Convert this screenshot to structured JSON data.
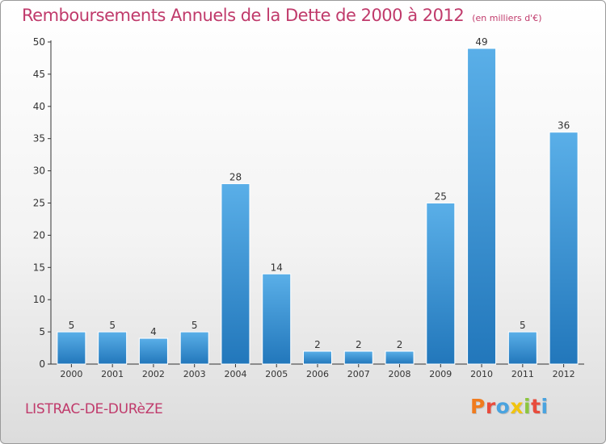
{
  "header": {
    "title": "Remboursements Annuels de la Dette de 2000 à 2012",
    "subtitle": "(en milliers d'€)"
  },
  "footer": {
    "place": "LISTRAC-DE-DURèZE",
    "brand": "Proxiti",
    "brand_colors": [
      "#f07c1e",
      "#e84c3d",
      "#4aa3df",
      "#f1c40f",
      "#8cc63f",
      "#e84c3d",
      "#4aa3df"
    ]
  },
  "chart_data": {
    "type": "bar",
    "title": "Remboursements Annuels de la Dette de 2000 à 2012",
    "subtitle": "(en milliers d'€)",
    "categories": [
      "2000",
      "2001",
      "2002",
      "2003",
      "2004",
      "2005",
      "2006",
      "2007",
      "2008",
      "2009",
      "2010",
      "2011",
      "2012"
    ],
    "values": [
      5,
      5,
      4,
      5,
      28,
      14,
      2,
      2,
      2,
      25,
      49,
      5,
      36
    ],
    "xlabel": "",
    "ylabel": "",
    "ylim": [
      0,
      50
    ],
    "yticks": [
      0,
      5,
      10,
      15,
      20,
      25,
      30,
      35,
      40,
      45,
      50
    ],
    "grid": false,
    "bar_color": "#3a8fd1",
    "bar_color_light": "#5aafe8",
    "bar_color_dark": "#2277bb"
  }
}
